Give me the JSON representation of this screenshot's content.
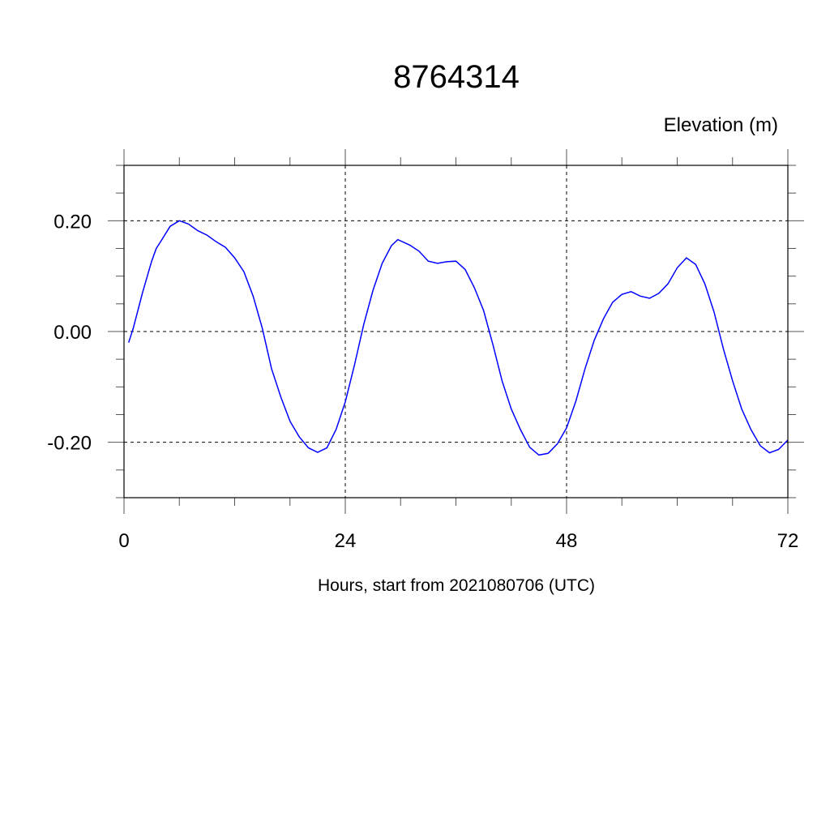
{
  "chart_data": {
    "type": "line",
    "title": "8764314",
    "ylabel": "Elevation (m)",
    "xlabel": "Hours, start from 2021080706 (UTC)",
    "xlim": [
      0,
      72
    ],
    "ylim": [
      -0.3,
      0.3
    ],
    "xticks": [
      0,
      24,
      48,
      72
    ],
    "xtick_labels": [
      "0",
      "24",
      "48",
      "72"
    ],
    "x_minor_step": 6,
    "yticks": [
      0.2,
      0.0,
      -0.2
    ],
    "ytick_labels": [
      "0.20",
      "0.00",
      "-0.20"
    ],
    "y_minor_step": 0.05,
    "grid": "dashed at major ticks",
    "line_color": "#0000ff",
    "series": [
      {
        "x": [
          0.5,
          1,
          2,
          3,
          3.5,
          4,
          5,
          6,
          7,
          8,
          9,
          10,
          11,
          12,
          13,
          14,
          15,
          16,
          17,
          18,
          19,
          20,
          21,
          22,
          23,
          24,
          25,
          26,
          27,
          28,
          29,
          29.7,
          31,
          32,
          33,
          34,
          35,
          36,
          37,
          38,
          39,
          40,
          41,
          42,
          43,
          44,
          45,
          46,
          47,
          48,
          49,
          50,
          51,
          52,
          53,
          54,
          55,
          56,
          57,
          58,
          59,
          60,
          61,
          62,
          63,
          64,
          65,
          66,
          67,
          68,
          69,
          70,
          71,
          72
        ],
        "y": [
          -0.02,
          0.006,
          0.07,
          0.127,
          0.15,
          0.163,
          0.19,
          0.2,
          0.194,
          0.182,
          0.174,
          0.162,
          0.152,
          0.133,
          0.108,
          0.064,
          0.006,
          -0.067,
          -0.118,
          -0.162,
          -0.19,
          -0.21,
          -0.218,
          -0.21,
          -0.177,
          -0.127,
          -0.06,
          0.013,
          0.074,
          0.123,
          0.155,
          0.166,
          0.156,
          0.145,
          0.127,
          0.123,
          0.126,
          0.127,
          0.112,
          0.079,
          0.038,
          -0.023,
          -0.089,
          -0.14,
          -0.177,
          -0.209,
          -0.223,
          -0.22,
          -0.203,
          -0.174,
          -0.126,
          -0.067,
          -0.016,
          0.023,
          0.053,
          0.067,
          0.072,
          0.064,
          0.06,
          0.069,
          0.086,
          0.115,
          0.133,
          0.121,
          0.086,
          0.035,
          -0.031,
          -0.089,
          -0.14,
          -0.177,
          -0.206,
          -0.219,
          -0.213,
          -0.196
        ]
      }
    ]
  }
}
